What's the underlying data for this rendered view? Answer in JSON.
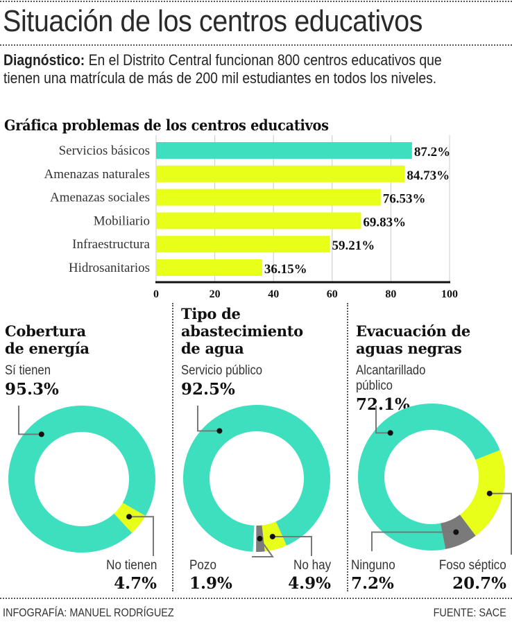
{
  "header": {
    "title": "Situación de los centros educativos",
    "diagnosis_label": "Diagnóstico:",
    "diagnosis_text": " En el Distrito Central funcionan 800 centros educativos que tienen una matrícula de más de 200 mil estudiantes en todos los niveles."
  },
  "colors": {
    "teal": "#3ddfbe",
    "yellow": "#e8ff1a",
    "gray": "#7a7a7a",
    "text": "#1c1c1c"
  },
  "chart_data": [
    {
      "type": "bar",
      "orientation": "horizontal",
      "title": "Gráfica problemas de los centros educativos",
      "categories": [
        "Servicios básicos",
        "Amenazas naturales",
        "Amenazas sociales",
        "Mobiliario",
        "Infraestructura",
        "Hidrosanitarios"
      ],
      "values": [
        87.2,
        84.73,
        76.53,
        69.83,
        59.21,
        36.15
      ],
      "value_labels": [
        "87.2%",
        "84.73%",
        "76.53%",
        "69.83%",
        "59.21%",
        "36.15%"
      ],
      "highlight_index": 0,
      "xlim": [
        0,
        100
      ],
      "xticks": [
        0,
        20,
        40,
        60,
        80,
        100
      ],
      "grid": true,
      "xlabel": "",
      "ylabel": ""
    },
    {
      "type": "pie",
      "donut": true,
      "title": "Cobertura de energía",
      "slices": [
        {
          "label": "Sí tienen",
          "value": 95.3,
          "display": "95.3%",
          "color": "teal"
        },
        {
          "label": "No tienen",
          "value": 4.7,
          "display": "4.7%",
          "color": "yellow"
        }
      ]
    },
    {
      "type": "pie",
      "donut": true,
      "title": "Tipo de abastecimiento de agua",
      "slices": [
        {
          "label": "Servicio público",
          "value": 92.5,
          "display": "92.5%",
          "color": "teal"
        },
        {
          "label": "No hay",
          "value": 4.9,
          "display": "4.9%",
          "color": "yellow"
        },
        {
          "label": "Pozo",
          "value": 1.9,
          "display": "1.9%",
          "color": "gray"
        }
      ]
    },
    {
      "type": "pie",
      "donut": true,
      "title": "Evacuación de aguas negras",
      "slices": [
        {
          "label": "Alcantarillado público",
          "value": 72.1,
          "display": "72.1%",
          "color": "teal"
        },
        {
          "label": "Foso séptico",
          "value": 20.7,
          "display": "20.7%",
          "color": "yellow"
        },
        {
          "label": "Ninguno",
          "value": 7.2,
          "display": "7.2%",
          "color": "gray"
        }
      ]
    }
  ],
  "sections": {
    "energy": {
      "title_line1": "Cobertura",
      "title_line2": "de energía",
      "main_label": "Sí tienen",
      "main_pct": "95.3%",
      "minor_label": "No tienen",
      "minor_pct": "4.7%"
    },
    "water": {
      "title_line1": "Tipo de",
      "title_line2": "abastecimiento",
      "title_line3": "de agua",
      "main_label": "Servicio público",
      "main_pct": "92.5%",
      "minor1_label": "Pozo",
      "minor1_pct": "1.9%",
      "minor2_label": "No hay",
      "minor2_pct": "4.9%"
    },
    "sewage": {
      "title_line1": "Evacuación de",
      "title_line2": "aguas negras",
      "main_label_line1": "Alcantarillado",
      "main_label_line2": "público",
      "main_pct": "72.1%",
      "minor1_label": "Ninguno",
      "minor1_pct": "7.2%",
      "minor2_label": "Foso séptico",
      "minor2_pct": "20.7%"
    }
  },
  "footer": {
    "credit": "INFOGRAFÍA: MANUEL RODRÍGUEZ",
    "source": "FUENTE: SACE"
  }
}
